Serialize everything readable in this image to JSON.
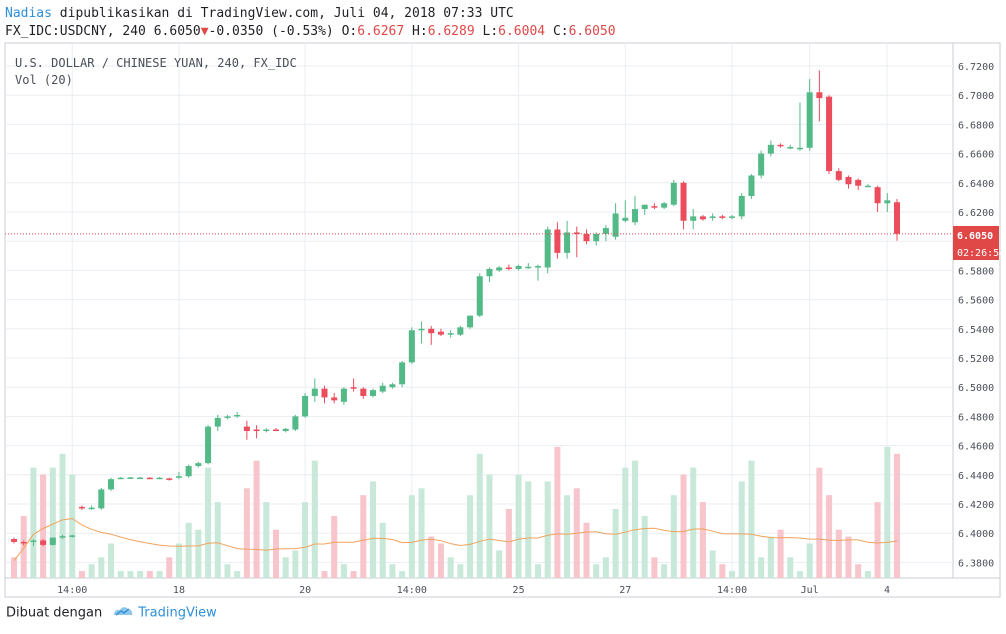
{
  "header": {
    "author": "Nadias",
    "published_text": "dipublikasikan di TradingView.com, Juli 04, 2018 07:33 UTC",
    "symbol_interval": "FX_IDC:USDCNY, 240",
    "last": "6.6050",
    "change": "-0.0350",
    "change_pct": "(-0.53%)",
    "o_label": "O:",
    "o": "6.6267",
    "h_label": "H:",
    "h": "6.6289",
    "l_label": "L:",
    "l": "6.6004",
    "c_label": "C:",
    "c": "6.6050"
  },
  "legend": {
    "title": "U.S. DOLLAR / CHINESE YUAN, 240, FX_IDC",
    "vol": "Vol (20)"
  },
  "price_tag": {
    "value": "6.6050",
    "countdown": "02:26:54"
  },
  "footer": {
    "made_with": "Dibuat dengan",
    "brand": "TradingView"
  },
  "colors": {
    "up": "#53b987",
    "down": "#eb4d5c",
    "vol_up": "#c8e9d9",
    "vol_down": "#f7c5cb",
    "ma": "#f0a35c",
    "last_price": "#e04747",
    "grid": "#e9edf2",
    "author": "#2f8fd8"
  },
  "chart_data": {
    "type": "candlestick",
    "title": "U.S. DOLLAR / CHINESE YUAN, 240, FX_IDC",
    "y_axis": {
      "range": [
        6.37,
        6.73
      ],
      "ticks": [
        "6.7200",
        "6.7000",
        "6.6800",
        "6.6600",
        "6.6400",
        "6.6200",
        "6.6000",
        "6.5800",
        "6.5600",
        "6.5400",
        "6.5200",
        "6.5000",
        "6.4800",
        "6.4600",
        "6.4400",
        "6.4200",
        "6.4000",
        "6.3800"
      ]
    },
    "x_axis": {
      "ticks": [
        "14:00",
        "18",
        "20",
        "14:00",
        "25",
        "27",
        "14:00",
        "Jul",
        "4"
      ]
    },
    "last_price": 6.605,
    "candles": [
      [
        6.396,
        6.397,
        6.393,
        6.394
      ],
      [
        6.394,
        6.395,
        6.3915,
        6.393
      ],
      [
        6.394,
        6.396,
        6.391,
        6.395
      ],
      [
        6.395,
        6.396,
        6.391,
        6.392
      ],
      [
        6.392,
        6.397,
        6.3915,
        6.397
      ],
      [
        6.397,
        6.399,
        6.396,
        6.398
      ],
      [
        6.398,
        6.399,
        6.397,
        6.3985
      ],
      [
        6.418,
        6.419,
        6.416,
        6.417
      ],
      [
        6.417,
        6.419,
        6.416,
        6.4175
      ],
      [
        6.417,
        6.431,
        6.416,
        6.43
      ],
      [
        6.43,
        6.438,
        6.429,
        6.437
      ],
      [
        6.438,
        6.4385,
        6.4375,
        6.438
      ],
      [
        6.438,
        6.4385,
        6.4375,
        6.4382
      ],
      [
        6.438,
        6.4385,
        6.4375,
        6.4381
      ],
      [
        6.438,
        6.4385,
        6.4375,
        6.4379
      ],
      [
        6.438,
        6.4385,
        6.4375,
        6.438
      ],
      [
        6.4375,
        6.438,
        6.436,
        6.437
      ],
      [
        6.438,
        6.442,
        6.437,
        6.439
      ],
      [
        6.439,
        6.447,
        6.438,
        6.446
      ],
      [
        6.446,
        6.449,
        6.445,
        6.448
      ],
      [
        6.448,
        6.474,
        6.447,
        6.473
      ],
      [
        6.473,
        6.481,
        6.47,
        6.479
      ],
      [
        6.479,
        6.481,
        6.478,
        6.48
      ],
      [
        6.48,
        6.483,
        6.479,
        6.481
      ],
      [
        6.473,
        6.477,
        6.464,
        6.47
      ],
      [
        6.471,
        6.474,
        6.465,
        6.47
      ],
      [
        6.47,
        6.472,
        6.469,
        6.471
      ],
      [
        6.471,
        6.472,
        6.47,
        6.4705
      ],
      [
        6.47,
        6.472,
        6.469,
        6.4715
      ],
      [
        6.471,
        6.481,
        6.47,
        6.48
      ],
      [
        6.48,
        6.496,
        6.479,
        6.494
      ],
      [
        6.494,
        6.506,
        6.49,
        6.499
      ],
      [
        6.499,
        6.501,
        6.489,
        6.493
      ],
      [
        6.493,
        6.496,
        6.489,
        6.491
      ],
      [
        6.49,
        6.5,
        6.488,
        6.499
      ],
      [
        6.5,
        6.506,
        6.497,
        6.499
      ],
      [
        6.499,
        6.5,
        6.492,
        6.494
      ],
      [
        6.494,
        6.499,
        6.493,
        6.498
      ],
      [
        6.497,
        6.503,
        6.496,
        6.501
      ],
      [
        6.5,
        6.503,
        6.499,
        6.502
      ],
      [
        6.502,
        6.518,
        6.5,
        6.517
      ],
      [
        6.517,
        6.541,
        6.516,
        6.539
      ],
      [
        6.539,
        6.545,
        6.53,
        6.54
      ],
      [
        6.54,
        6.542,
        6.529,
        6.537
      ],
      [
        6.538,
        6.54,
        6.535,
        6.536
      ],
      [
        6.536,
        6.539,
        6.534,
        6.537
      ],
      [
        6.536,
        6.542,
        6.535,
        6.541
      ],
      [
        6.541,
        6.549,
        6.54,
        6.549
      ],
      [
        6.549,
        6.578,
        6.548,
        6.576
      ],
      [
        6.576,
        6.582,
        6.572,
        6.581
      ],
      [
        6.58,
        6.583,
        6.579,
        6.582
      ],
      [
        6.582,
        6.584,
        6.58,
        6.581
      ],
      [
        6.581,
        6.584,
        6.58,
        6.583
      ],
      [
        6.582,
        6.585,
        6.581,
        6.5825
      ],
      [
        6.583,
        6.584,
        6.573,
        6.583
      ],
      [
        6.582,
        6.61,
        6.578,
        6.608
      ],
      [
        6.608,
        6.613,
        6.588,
        6.592
      ],
      [
        6.592,
        6.614,
        6.588,
        6.606
      ],
      [
        6.606,
        6.61,
        6.589,
        6.605
      ],
      [
        6.605,
        6.608,
        6.598,
        6.6
      ],
      [
        6.6,
        6.606,
        6.597,
        6.605
      ],
      [
        6.605,
        6.611,
        6.6,
        6.609
      ],
      [
        6.603,
        6.626,
        6.601,
        6.619
      ],
      [
        6.614,
        6.628,
        6.613,
        6.616
      ],
      [
        6.613,
        6.631,
        6.611,
        6.622
      ],
      [
        6.622,
        6.625,
        6.618,
        6.625
      ],
      [
        6.624,
        6.626,
        6.622,
        6.623
      ],
      [
        6.623,
        6.627,
        6.622,
        6.626
      ],
      [
        6.625,
        6.642,
        6.624,
        6.64
      ],
      [
        6.64,
        6.641,
        6.608,
        6.614
      ],
      [
        6.614,
        6.622,
        6.608,
        6.617
      ],
      [
        6.617,
        6.618,
        6.614,
        6.615
      ],
      [
        6.616,
        6.619,
        6.614,
        6.617
      ],
      [
        6.617,
        6.618,
        6.615,
        6.616
      ],
      [
        6.616,
        6.618,
        6.615,
        6.617
      ],
      [
        6.617,
        6.633,
        6.615,
        6.631
      ],
      [
        6.631,
        6.646,
        6.629,
        6.645
      ],
      [
        6.645,
        6.662,
        6.643,
        6.66
      ],
      [
        6.66,
        6.669,
        6.658,
        6.666
      ],
      [
        6.666,
        6.667,
        6.664,
        6.665
      ],
      [
        6.664,
        6.666,
        6.663,
        6.6645
      ],
      [
        6.664,
        6.695,
        6.662,
        6.664
      ],
      [
        6.664,
        6.711,
        6.662,
        6.702
      ],
      [
        6.702,
        6.717,
        6.682,
        6.698
      ],
      [
        6.699,
        6.7,
        6.646,
        6.648
      ],
      [
        6.648,
        6.65,
        6.641,
        6.642
      ],
      [
        6.644,
        6.645,
        6.636,
        6.639
      ],
      [
        6.642,
        6.643,
        6.635,
        6.638
      ],
      [
        6.638,
        6.639,
        6.637,
        6.638
      ],
      [
        6.637,
        6.638,
        6.62,
        6.626
      ],
      [
        6.626,
        6.633,
        6.62,
        6.628
      ],
      [
        6.6267,
        6.6289,
        6.6004,
        6.605
      ]
    ],
    "volume": [
      3,
      9,
      16,
      15,
      16,
      18,
      15,
      1,
      2,
      3,
      5,
      1,
      1,
      1,
      1,
      1,
      3,
      5,
      8,
      7,
      16,
      11,
      2,
      1,
      13,
      17,
      11,
      7,
      3,
      4,
      11,
      17,
      1,
      9,
      2,
      1,
      12,
      14,
      8,
      2,
      1,
      12,
      13,
      6,
      5,
      3,
      2,
      12,
      18,
      15,
      4,
      10,
      15,
      14,
      2,
      14,
      19,
      12,
      13,
      8,
      2,
      3,
      10,
      16,
      17,
      9,
      3,
      2,
      12,
      15,
      16,
      11,
      4,
      2,
      1,
      14,
      17,
      3,
      6,
      7,
      3,
      1,
      5,
      16,
      12,
      7,
      6,
      2,
      1,
      11,
      19,
      18
    ]
  }
}
